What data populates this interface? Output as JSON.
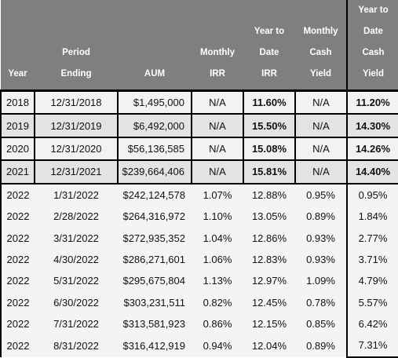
{
  "headers": [
    [
      "Year"
    ],
    [
      "Period",
      "Ending"
    ],
    [
      "AUM"
    ],
    [
      "Monthly",
      "IRR"
    ],
    [
      "Year to",
      "Date",
      "IRR"
    ],
    [
      "Monthly",
      "Cash",
      "Yield"
    ],
    [
      "Year to",
      "Date",
      "Cash",
      "Yield"
    ]
  ],
  "annual_rows": [
    {
      "year": "2018",
      "period": "12/31/2018",
      "aum": "$1,495,000",
      "monthly_irr": "N/A",
      "ytd_irr": "11.60%",
      "monthly_yield": "N/A",
      "ytd_yield": "11.20%"
    },
    {
      "year": "2019",
      "period": "12/31/2019",
      "aum": "$6,492,000",
      "monthly_irr": "N/A",
      "ytd_irr": "15.50%",
      "monthly_yield": "N/A",
      "ytd_yield": "14.30%"
    },
    {
      "year": "2020",
      "period": "12/31/2020",
      "aum": "$56,136,585",
      "monthly_irr": "N/A",
      "ytd_irr": "15.08%",
      "monthly_yield": "N/A",
      "ytd_yield": "14.26%"
    },
    {
      "year": "2021",
      "period": "12/31/2021",
      "aum": "$239,664,406",
      "monthly_irr": "N/A",
      "ytd_irr": "15.81%",
      "monthly_yield": "N/A",
      "ytd_yield": "14.40%"
    }
  ],
  "monthly_rows": [
    {
      "year": "2022",
      "period": "1/31/2022",
      "aum": "$242,124,578",
      "monthly_irr": "1.07%",
      "ytd_irr": "12.88%",
      "monthly_yield": "0.95%",
      "ytd_yield": "0.95%"
    },
    {
      "year": "2022",
      "period": "2/28/2022",
      "aum": "$264,316,972",
      "monthly_irr": "1.10%",
      "ytd_irr": "13.05%",
      "monthly_yield": "0.89%",
      "ytd_yield": "1.84%"
    },
    {
      "year": "2022",
      "period": "3/31/2022",
      "aum": "$272,935,352",
      "monthly_irr": "1.04%",
      "ytd_irr": "12.86%",
      "monthly_yield": "0.93%",
      "ytd_yield": "2.77%"
    },
    {
      "year": "2022",
      "period": "4/30/2022",
      "aum": "$286,271,601",
      "monthly_irr": "1.06%",
      "ytd_irr": "12.83%",
      "monthly_yield": "0.93%",
      "ytd_yield": "3.71%"
    },
    {
      "year": "2022",
      "period": "5/31/2022",
      "aum": "$295,675,804",
      "monthly_irr": "1.13%",
      "ytd_irr": "12.97%",
      "monthly_yield": "1.09%",
      "ytd_yield": "4.79%"
    },
    {
      "year": "2022",
      "period": "6/30/2022",
      "aum": "$303,231,511",
      "monthly_irr": "0.82%",
      "ytd_irr": "12.45%",
      "monthly_yield": "0.78%",
      "ytd_yield": "5.57%"
    },
    {
      "year": "2022",
      "period": "7/31/2022",
      "aum": "$313,581,923",
      "monthly_irr": "0.86%",
      "ytd_irr": "12.15%",
      "monthly_yield": "0.85%",
      "ytd_yield": "6.42%"
    },
    {
      "year": "2022",
      "period": "8/31/2022",
      "aum": "$316,412,919",
      "monthly_irr": "0.94%",
      "ytd_irr": "12.04%",
      "monthly_yield": "0.89%",
      "ytd_yield": "7.31%"
    }
  ]
}
